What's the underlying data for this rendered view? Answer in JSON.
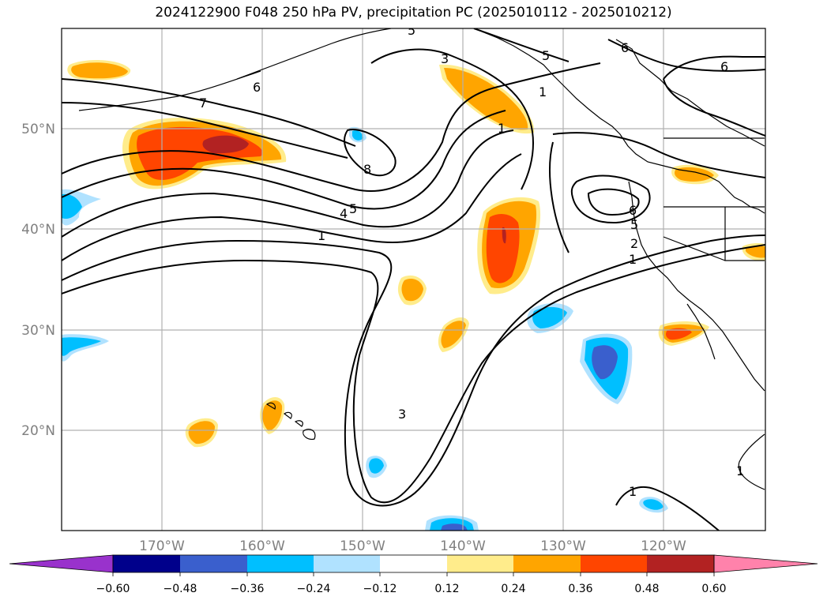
{
  "title": "2024122900 F048 250 hPa PV, precipitation PC (2025010112 - 2025010212)",
  "map": {
    "lon_labels": [
      "170°W",
      "160°W",
      "150°W",
      "140°W",
      "130°W",
      "120°W"
    ],
    "lat_labels": [
      "50°N",
      "40°N",
      "30°N",
      "20°N"
    ],
    "contour_labels": [
      "6",
      "7",
      "8",
      "5",
      "4",
      "1",
      "3",
      "1",
      "5",
      "6",
      "6",
      "6",
      "5",
      "2",
      "1",
      "3",
      "1",
      "1",
      "1",
      "5"
    ]
  },
  "colorbar": {
    "colors": [
      "#9932cc",
      "#00008b",
      "#3a5fcd",
      "#00bfff",
      "#b0e2ff",
      "#ffffff",
      "#ffec8b",
      "#ffa500",
      "#ff4500",
      "#b22222",
      "#ff82ab"
    ],
    "tick_labels": [
      "−0.60",
      "−0.48",
      "−0.36",
      "−0.24",
      "−0.12",
      "0.12",
      "0.24",
      "0.36",
      "0.48",
      "0.60"
    ]
  }
}
